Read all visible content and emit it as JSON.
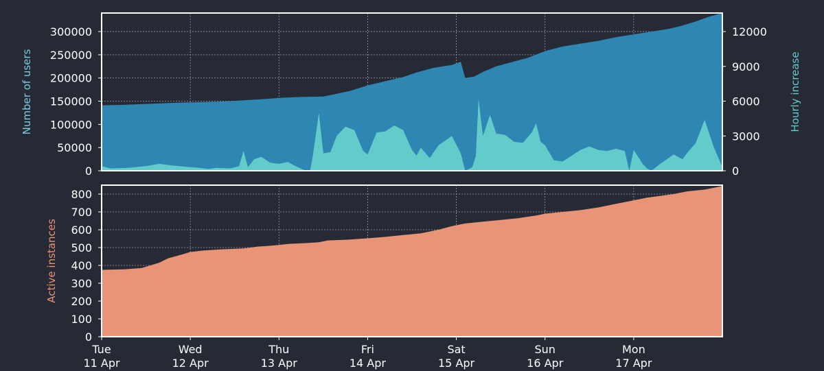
{
  "colors": {
    "background": "#262a35",
    "users_fill": "#2e86b2",
    "hourly_fill": "#63cccb",
    "instances_fill": "#e99476",
    "axis_text": "#ffffff",
    "users_label": "#7ecbe0",
    "hourly_label": "#63cccb",
    "instances_label": "#e99476",
    "grid": "#9a9ea8",
    "frame": "#ffffff"
  },
  "chart_data": [
    {
      "type": "area",
      "panel": "top",
      "xlim": [
        0,
        7
      ],
      "grid": true,
      "x_tick_positions": [
        0,
        1,
        2,
        3,
        4,
        5,
        6
      ],
      "x_tick_labels": [
        [
          "Tue",
          "11 Apr"
        ],
        [
          "Wed",
          "12 Apr"
        ],
        [
          "Thu",
          "13 Apr"
        ],
        [
          "Fri",
          "14 Apr"
        ],
        [
          "Sat",
          "15 Apr"
        ],
        [
          "Sun",
          "16 Apr"
        ],
        [
          "Mon",
          "17 Apr"
        ]
      ],
      "ylabel": "Number of users",
      "ylim": [
        0,
        340000
      ],
      "y_ticks": [
        0,
        50000,
        100000,
        150000,
        200000,
        250000,
        300000
      ],
      "y_tick_labels": [
        "0",
        "50000",
        "100000",
        "150000",
        "200000",
        "250000",
        "300000"
      ],
      "y2label": "Hourly increase",
      "y2lim": [
        0,
        13600
      ],
      "y2_ticks": [
        0,
        3000,
        6000,
        9000,
        12000
      ],
      "y2_tick_labels": [
        "0",
        "3000",
        "6000",
        "9000",
        "12000"
      ],
      "series": [
        {
          "name": "Number of users",
          "axis": "left",
          "points": [
            [
              0,
              141000
            ],
            [
              0.25,
              142000
            ],
            [
              0.5,
              144000
            ],
            [
              0.75,
              146000
            ],
            [
              1,
              147500
            ],
            [
              1.25,
              148500
            ],
            [
              1.45,
              150000
            ],
            [
              1.6,
              152000
            ],
            [
              1.8,
              154000
            ],
            [
              2,
              157000
            ],
            [
              2.25,
              159000
            ],
            [
              2.5,
              160000
            ],
            [
              2.6,
              164000
            ],
            [
              2.8,
              172000
            ],
            [
              3,
              184000
            ],
            [
              3.2,
              193000
            ],
            [
              3.4,
              202000
            ],
            [
              3.55,
              212000
            ],
            [
              3.75,
              222000
            ],
            [
              3.95,
              228000
            ],
            [
              4.05,
              235000
            ],
            [
              4.1,
              200000
            ],
            [
              4.2,
              203000
            ],
            [
              4.3,
              213000
            ],
            [
              4.45,
              225000
            ],
            [
              4.6,
              233000
            ],
            [
              4.8,
              243000
            ],
            [
              5,
              258000
            ],
            [
              5.2,
              268000
            ],
            [
              5.4,
              274000
            ],
            [
              5.6,
              280000
            ],
            [
              5.8,
              288000
            ],
            [
              6,
              294000
            ],
            [
              6.2,
              300000
            ],
            [
              6.4,
              306000
            ],
            [
              6.55,
              313000
            ],
            [
              6.7,
              322000
            ],
            [
              6.85,
              332000
            ],
            [
              7,
              340000
            ]
          ]
        },
        {
          "name": "Hourly increase",
          "axis": "right",
          "points": [
            [
              0,
              400
            ],
            [
              0.1,
              200
            ],
            [
              0.3,
              250
            ],
            [
              0.5,
              400
            ],
            [
              0.65,
              600
            ],
            [
              0.8,
              450
            ],
            [
              0.95,
              350
            ],
            [
              1.1,
              250
            ],
            [
              1.2,
              150
            ],
            [
              1.3,
              250
            ],
            [
              1.45,
              200
            ],
            [
              1.55,
              400
            ],
            [
              1.6,
              1700
            ],
            [
              1.65,
              300
            ],
            [
              1.72,
              1000
            ],
            [
              1.8,
              1200
            ],
            [
              1.9,
              700
            ],
            [
              2,
              600
            ],
            [
              2.1,
              750
            ],
            [
              2.2,
              350
            ],
            [
              2.3,
              0
            ],
            [
              2.35,
              0
            ],
            [
              2.38,
              1200
            ],
            [
              2.45,
              5000
            ],
            [
              2.5,
              1500
            ],
            [
              2.58,
              1600
            ],
            [
              2.65,
              3000
            ],
            [
              2.75,
              3800
            ],
            [
              2.85,
              3500
            ],
            [
              2.95,
              1700
            ],
            [
              3,
              1400
            ],
            [
              3.1,
              3300
            ],
            [
              3.2,
              3400
            ],
            [
              3.3,
              3900
            ],
            [
              3.4,
              3500
            ],
            [
              3.5,
              1800
            ],
            [
              3.55,
              1300
            ],
            [
              3.6,
              2000
            ],
            [
              3.7,
              1100
            ],
            [
              3.8,
              2200
            ],
            [
              3.95,
              3000
            ],
            [
              4.05,
              1500
            ],
            [
              4.1,
              0
            ],
            [
              4.18,
              300
            ],
            [
              4.22,
              1300
            ],
            [
              4.25,
              6200
            ],
            [
              4.3,
              3000
            ],
            [
              4.38,
              4800
            ],
            [
              4.45,
              3200
            ],
            [
              4.55,
              3100
            ],
            [
              4.65,
              2500
            ],
            [
              4.75,
              2400
            ],
            [
              4.85,
              3300
            ],
            [
              4.9,
              4100
            ],
            [
              4.95,
              2500
            ],
            [
              5,
              2200
            ],
            [
              5.1,
              900
            ],
            [
              5.2,
              800
            ],
            [
              5.3,
              1300
            ],
            [
              5.4,
              1800
            ],
            [
              5.5,
              2100
            ],
            [
              5.6,
              1800
            ],
            [
              5.7,
              1700
            ],
            [
              5.8,
              1900
            ],
            [
              5.9,
              1700
            ],
            [
              5.95,
              0
            ],
            [
              6,
              1800
            ],
            [
              6.1,
              600
            ],
            [
              6.15,
              200
            ],
            [
              6.2,
              0
            ],
            [
              6.3,
              600
            ],
            [
              6.45,
              1400
            ],
            [
              6.55,
              1000
            ],
            [
              6.6,
              1500
            ],
            [
              6.7,
              2400
            ],
            [
              6.8,
              4400
            ],
            [
              6.9,
              2100
            ],
            [
              7,
              300
            ]
          ]
        }
      ]
    },
    {
      "type": "area",
      "panel": "bottom",
      "xlim": [
        0,
        7
      ],
      "grid": true,
      "ylabel": "Active instances",
      "ylim": [
        0,
        850
      ],
      "y_ticks": [
        0,
        100,
        200,
        300,
        400,
        500,
        600,
        700,
        800
      ],
      "y_tick_labels": [
        "0",
        "100",
        "200",
        "300",
        "400",
        "500",
        "600",
        "700",
        "800"
      ],
      "series": [
        {
          "name": "Active instances",
          "points": [
            [
              0,
              375
            ],
            [
              0.25,
              378
            ],
            [
              0.45,
              385
            ],
            [
              0.55,
              400
            ],
            [
              0.65,
              415
            ],
            [
              0.75,
              440
            ],
            [
              0.9,
              460
            ],
            [
              1,
              475
            ],
            [
              1.15,
              484
            ],
            [
              1.35,
              490
            ],
            [
              1.6,
              495
            ],
            [
              1.75,
              505
            ],
            [
              1.9,
              510
            ],
            [
              2,
              515
            ],
            [
              2.1,
              520
            ],
            [
              2.3,
              525
            ],
            [
              2.45,
              530
            ],
            [
              2.55,
              540
            ],
            [
              2.8,
              545
            ],
            [
              3,
              552
            ],
            [
              3.2,
              560
            ],
            [
              3.4,
              570
            ],
            [
              3.6,
              580
            ],
            [
              3.8,
              600
            ],
            [
              3.95,
              620
            ],
            [
              4.1,
              635
            ],
            [
              4.3,
              645
            ],
            [
              4.5,
              655
            ],
            [
              4.7,
              665
            ],
            [
              4.9,
              680
            ],
            [
              5,
              690
            ],
            [
              5.2,
              700
            ],
            [
              5.4,
              710
            ],
            [
              5.6,
              725
            ],
            [
              5.8,
              745
            ],
            [
              6,
              765
            ],
            [
              6.15,
              780
            ],
            [
              6.3,
              790
            ],
            [
              6.45,
              800
            ],
            [
              6.6,
              815
            ],
            [
              6.8,
              825
            ],
            [
              6.95,
              840
            ],
            [
              7,
              845
            ]
          ]
        }
      ]
    }
  ]
}
